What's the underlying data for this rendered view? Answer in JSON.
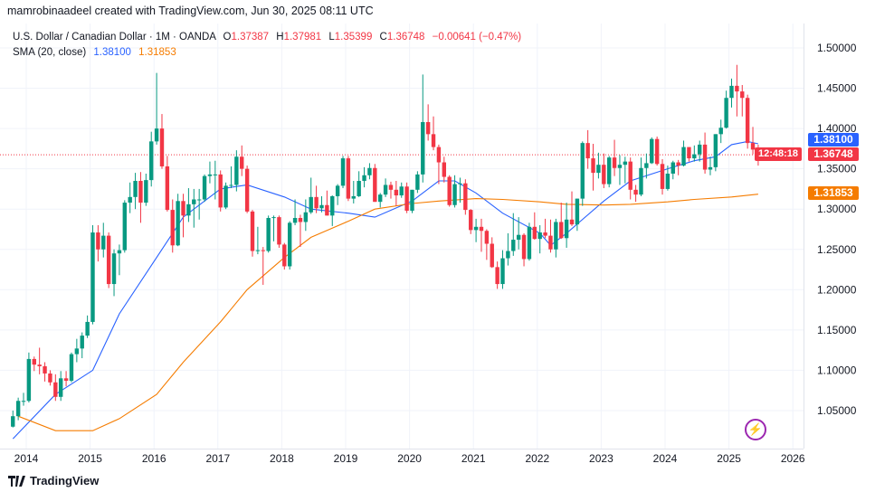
{
  "credit": "mamrobinaadeel created with TradingView.com, Jun 30, 2025 08:11 UTC",
  "legend": {
    "symbol": "U.S. Dollar / Canadian Dollar · 1M · OANDA",
    "o_label": "O",
    "o": "1.37387",
    "h_label": "H",
    "h": "1.37981",
    "l_label": "L",
    "l": "1.35399",
    "c_label": "C",
    "c": "1.36748",
    "change": "−0.00641 (−0.47%)",
    "sma_label": "SMA (20, close)",
    "sma_value_1": "1.38100",
    "sma_value_2": "1.31853"
  },
  "price_tags": {
    "sma_blue": "1.38100",
    "last_price": "1.36748",
    "countdown": "12:48:18",
    "sma_orange": "1.31853"
  },
  "footer": {
    "brand": "TradingView"
  },
  "icons": {
    "logo": "tradingview-logo-icon",
    "event": "lightning-icon"
  },
  "colors": {
    "up": "#089981",
    "down": "#f23645",
    "sma_blue": "#2962ff",
    "sma_orange": "#f57c00",
    "bolt": "#9c27b0"
  },
  "chart_data": {
    "type": "candlestick",
    "interval": "1M",
    "grid": true,
    "ylim": [
      1.015,
      1.515
    ],
    "y_ticks": [
      "1.05000",
      "1.10000",
      "1.15000",
      "1.20000",
      "1.25000",
      "1.30000",
      "1.35000",
      "1.40000",
      "1.45000",
      "1.50000"
    ],
    "x_ticks": [
      "2014",
      "2015",
      "2016",
      "2017",
      "2018",
      "2019",
      "2020",
      "2021",
      "2022",
      "2023",
      "2024",
      "2025",
      "2026"
    ],
    "start": "2013-10",
    "candles_ohlc": [
      [
        1.03,
        1.05,
        1.029,
        1.043
      ],
      [
        1.043,
        1.066,
        1.038,
        1.062
      ],
      [
        1.062,
        1.072,
        1.056,
        1.062
      ],
      [
        1.062,
        1.122,
        1.06,
        1.114
      ],
      [
        1.114,
        1.117,
        1.099,
        1.107
      ],
      [
        1.107,
        1.128,
        1.095,
        1.105
      ],
      [
        1.105,
        1.11,
        1.086,
        1.096
      ],
      [
        1.096,
        1.1,
        1.081,
        1.085
      ],
      [
        1.085,
        1.095,
        1.062,
        1.067
      ],
      [
        1.067,
        1.099,
        1.062,
        1.09
      ],
      [
        1.09,
        1.099,
        1.08,
        1.087
      ],
      [
        1.087,
        1.122,
        1.085,
        1.12
      ],
      [
        1.12,
        1.139,
        1.11,
        1.127
      ],
      [
        1.127,
        1.147,
        1.115,
        1.143
      ],
      [
        1.143,
        1.168,
        1.14,
        1.16
      ],
      [
        1.16,
        1.28,
        1.157,
        1.271
      ],
      [
        1.271,
        1.28,
        1.235,
        1.25
      ],
      [
        1.25,
        1.283,
        1.24,
        1.267
      ],
      [
        1.267,
        1.271,
        1.202,
        1.207
      ],
      [
        1.207,
        1.25,
        1.192,
        1.245
      ],
      [
        1.245,
        1.256,
        1.218,
        1.249
      ],
      [
        1.249,
        1.311,
        1.246,
        1.308
      ],
      [
        1.308,
        1.333,
        1.295,
        1.315
      ],
      [
        1.315,
        1.345,
        1.3,
        1.335
      ],
      [
        1.335,
        1.346,
        1.283,
        1.308
      ],
      [
        1.308,
        1.344,
        1.304,
        1.336
      ],
      [
        1.336,
        1.396,
        1.328,
        1.384
      ],
      [
        1.384,
        1.469,
        1.38,
        1.4
      ],
      [
        1.4,
        1.418,
        1.35,
        1.353
      ],
      [
        1.353,
        1.366,
        1.297,
        1.299
      ],
      [
        1.299,
        1.312,
        1.246,
        1.255
      ],
      [
        1.255,
        1.319,
        1.254,
        1.31
      ],
      [
        1.31,
        1.319,
        1.265,
        1.292
      ],
      [
        1.292,
        1.326,
        1.284,
        1.306
      ],
      [
        1.306,
        1.325,
        1.277,
        1.312
      ],
      [
        1.312,
        1.325,
        1.287,
        1.312
      ],
      [
        1.312,
        1.343,
        1.309,
        1.341
      ],
      [
        1.341,
        1.359,
        1.332,
        1.343
      ],
      [
        1.343,
        1.36,
        1.312,
        1.343
      ],
      [
        1.343,
        1.348,
        1.297,
        1.302
      ],
      [
        1.302,
        1.333,
        1.3,
        1.329
      ],
      [
        1.329,
        1.353,
        1.326,
        1.33
      ],
      [
        1.33,
        1.373,
        1.322,
        1.365
      ],
      [
        1.365,
        1.379,
        1.341,
        1.35
      ],
      [
        1.35,
        1.354,
        1.295,
        1.297
      ],
      [
        1.297,
        1.299,
        1.241,
        1.248
      ],
      [
        1.248,
        1.278,
        1.244,
        1.249
      ],
      [
        1.249,
        1.253,
        1.206,
        1.248
      ],
      [
        1.248,
        1.292,
        1.246,
        1.289
      ],
      [
        1.289,
        1.292,
        1.26,
        1.29
      ],
      [
        1.29,
        1.292,
        1.252,
        1.256
      ],
      [
        1.256,
        1.258,
        1.225,
        1.229
      ],
      [
        1.229,
        1.285,
        1.225,
        1.283
      ],
      [
        1.283,
        1.312,
        1.28,
        1.289
      ],
      [
        1.289,
        1.293,
        1.253,
        1.284
      ],
      [
        1.284,
        1.312,
        1.273,
        1.296
      ],
      [
        1.296,
        1.339,
        1.294,
        1.315
      ],
      [
        1.315,
        1.329,
        1.295,
        1.301
      ],
      [
        1.301,
        1.316,
        1.296,
        1.305
      ],
      [
        1.305,
        1.323,
        1.292,
        1.292
      ],
      [
        1.292,
        1.317,
        1.279,
        1.316
      ],
      [
        1.316,
        1.331,
        1.305,
        1.329
      ],
      [
        1.329,
        1.366,
        1.326,
        1.363
      ],
      [
        1.363,
        1.366,
        1.31,
        1.313
      ],
      [
        1.313,
        1.335,
        1.307,
        1.316
      ],
      [
        1.316,
        1.347,
        1.315,
        1.335
      ],
      [
        1.335,
        1.352,
        1.327,
        1.342
      ],
      [
        1.342,
        1.357,
        1.337,
        1.351
      ],
      [
        1.351,
        1.356,
        1.309,
        1.309
      ],
      [
        1.309,
        1.32,
        1.302,
        1.318
      ],
      [
        1.318,
        1.338,
        1.315,
        1.33
      ],
      [
        1.33,
        1.334,
        1.313,
        1.324
      ],
      [
        1.324,
        1.335,
        1.304,
        1.317
      ],
      [
        1.317,
        1.333,
        1.314,
        1.328
      ],
      [
        1.328,
        1.333,
        1.295,
        1.298
      ],
      [
        1.298,
        1.324,
        1.295,
        1.324
      ],
      [
        1.324,
        1.347,
        1.32,
        1.343
      ],
      [
        1.343,
        1.467,
        1.333,
        1.408
      ],
      [
        1.408,
        1.43,
        1.385,
        1.393
      ],
      [
        1.393,
        1.415,
        1.373,
        1.377
      ],
      [
        1.377,
        1.38,
        1.331,
        1.358
      ],
      [
        1.358,
        1.365,
        1.333,
        1.34
      ],
      [
        1.34,
        1.342,
        1.303,
        1.305
      ],
      [
        1.305,
        1.342,
        1.302,
        1.331
      ],
      [
        1.331,
        1.339,
        1.308,
        1.332
      ],
      [
        1.332,
        1.337,
        1.293,
        1.299
      ],
      [
        1.299,
        1.3,
        1.269,
        1.274
      ],
      [
        1.274,
        1.288,
        1.259,
        1.278
      ],
      [
        1.278,
        1.288,
        1.247,
        1.273
      ],
      [
        1.273,
        1.275,
        1.237,
        1.257
      ],
      [
        1.257,
        1.265,
        1.227,
        1.228
      ],
      [
        1.228,
        1.235,
        1.201,
        1.207
      ],
      [
        1.207,
        1.249,
        1.201,
        1.239
      ],
      [
        1.239,
        1.27,
        1.23,
        1.248
      ],
      [
        1.248,
        1.295,
        1.242,
        1.262
      ],
      [
        1.262,
        1.29,
        1.25,
        1.268
      ],
      [
        1.268,
        1.27,
        1.229,
        1.238
      ],
      [
        1.238,
        1.283,
        1.236,
        1.278
      ],
      [
        1.278,
        1.296,
        1.262,
        1.263
      ],
      [
        1.263,
        1.28,
        1.245,
        1.271
      ],
      [
        1.271,
        1.288,
        1.264,
        1.267
      ],
      [
        1.267,
        1.287,
        1.246,
        1.25
      ],
      [
        1.25,
        1.288,
        1.24,
        1.284
      ],
      [
        1.284,
        1.308,
        1.263,
        1.264
      ],
      [
        1.264,
        1.308,
        1.252,
        1.287
      ],
      [
        1.287,
        1.322,
        1.279,
        1.281
      ],
      [
        1.281,
        1.313,
        1.273,
        1.313
      ],
      [
        1.313,
        1.384,
        1.304,
        1.382
      ],
      [
        1.382,
        1.398,
        1.35,
        1.363
      ],
      [
        1.363,
        1.381,
        1.323,
        1.345
      ],
      [
        1.345,
        1.37,
        1.338,
        1.355
      ],
      [
        1.355,
        1.369,
        1.326,
        1.331
      ],
      [
        1.331,
        1.366,
        1.327,
        1.364
      ],
      [
        1.364,
        1.386,
        1.341,
        1.351
      ],
      [
        1.351,
        1.367,
        1.33,
        1.355
      ],
      [
        1.355,
        1.365,
        1.332,
        1.359
      ],
      [
        1.359,
        1.364,
        1.312,
        1.324
      ],
      [
        1.324,
        1.33,
        1.309,
        1.318
      ],
      [
        1.318,
        1.364,
        1.316,
        1.351
      ],
      [
        1.351,
        1.369,
        1.338,
        1.357
      ],
      [
        1.357,
        1.389,
        1.356,
        1.387
      ],
      [
        1.387,
        1.39,
        1.354,
        1.356
      ],
      [
        1.356,
        1.362,
        1.318,
        1.325
      ],
      [
        1.325,
        1.354,
        1.323,
        1.344
      ],
      [
        1.344,
        1.36,
        1.337,
        1.358
      ],
      [
        1.358,
        1.361,
        1.342,
        1.354
      ],
      [
        1.354,
        1.385,
        1.353,
        1.377
      ],
      [
        1.377,
        1.376,
        1.359,
        1.363
      ],
      [
        1.363,
        1.379,
        1.359,
        1.368
      ],
      [
        1.368,
        1.385,
        1.359,
        1.38
      ],
      [
        1.38,
        1.395,
        1.344,
        1.349
      ],
      [
        1.349,
        1.365,
        1.342,
        1.352
      ],
      [
        1.352,
        1.393,
        1.347,
        1.393
      ],
      [
        1.393,
        1.411,
        1.382,
        1.401
      ],
      [
        1.401,
        1.447,
        1.4,
        1.438
      ],
      [
        1.438,
        1.462,
        1.426,
        1.453
      ],
      [
        1.453,
        1.479,
        1.415,
        1.446
      ],
      [
        1.446,
        1.454,
        1.415,
        1.438
      ],
      [
        1.438,
        1.442,
        1.375,
        1.382
      ],
      [
        1.382,
        1.402,
        1.368,
        1.37387
      ],
      [
        1.37387,
        1.37981,
        1.35399,
        1.36748
      ]
    ],
    "series": [
      {
        "name": "SMA (20, close)",
        "color": "#2962ff",
        "points": [
          [
            "2013-10",
            1.015
          ],
          [
            "2014-06",
            1.07
          ],
          [
            "2015-01",
            1.1
          ],
          [
            "2015-06",
            1.17
          ],
          [
            "2016-01",
            1.24
          ],
          [
            "2016-06",
            1.29
          ],
          [
            "2017-01",
            1.325
          ],
          [
            "2017-06",
            1.33
          ],
          [
            "2018-01",
            1.315
          ],
          [
            "2018-06",
            1.3
          ],
          [
            "2019-01",
            1.295
          ],
          [
            "2019-06",
            1.29
          ],
          [
            "2020-01",
            1.31
          ],
          [
            "2020-06",
            1.335
          ],
          [
            "2020-09",
            1.335
          ],
          [
            "2021-01",
            1.32
          ],
          [
            "2021-06",
            1.295
          ],
          [
            "2022-01",
            1.27
          ],
          [
            "2022-03",
            1.255
          ],
          [
            "2022-06",
            1.27
          ],
          [
            "2023-01",
            1.31
          ],
          [
            "2023-06",
            1.335
          ],
          [
            "2024-01",
            1.35
          ],
          [
            "2024-06",
            1.36
          ],
          [
            "2024-10",
            1.365
          ],
          [
            "2025-01",
            1.38
          ],
          [
            "2025-04",
            1.384
          ],
          [
            "2025-06",
            1.381
          ]
        ]
      },
      {
        "color": "#f57c00",
        "points": [
          [
            "2013-11",
            1.043
          ],
          [
            "2014-06",
            1.025
          ],
          [
            "2015-01",
            1.025
          ],
          [
            "2015-06",
            1.04
          ],
          [
            "2016-01",
            1.07
          ],
          [
            "2016-06",
            1.11
          ],
          [
            "2017-01",
            1.16
          ],
          [
            "2017-06",
            1.2
          ],
          [
            "2018-01",
            1.24
          ],
          [
            "2018-06",
            1.265
          ],
          [
            "2019-01",
            1.285
          ],
          [
            "2019-06",
            1.3
          ],
          [
            "2020-01",
            1.307
          ],
          [
            "2020-06",
            1.31
          ],
          [
            "2021-01",
            1.313
          ],
          [
            "2021-06",
            1.312
          ],
          [
            "2022-01",
            1.309
          ],
          [
            "2022-06",
            1.306
          ],
          [
            "2023-01",
            1.305
          ],
          [
            "2023-06",
            1.306
          ],
          [
            "2024-01",
            1.309
          ],
          [
            "2024-06",
            1.312
          ],
          [
            "2025-01",
            1.315
          ],
          [
            "2025-06",
            1.31853
          ]
        ]
      }
    ],
    "last_price": 1.36748
  }
}
